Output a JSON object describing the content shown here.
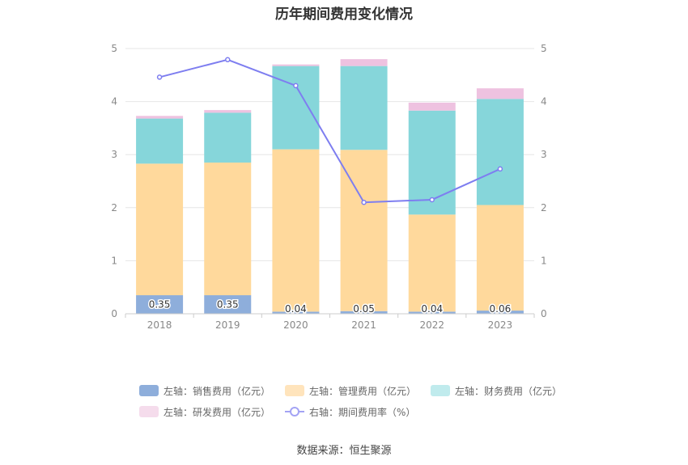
{
  "chart_data": {
    "type": "bar",
    "title": "历年期间费用变化情况",
    "categories": [
      "2018",
      "2019",
      "2020",
      "2021",
      "2022",
      "2023"
    ],
    "ylim_left": [
      0,
      5
    ],
    "ylim_right": [
      0,
      5
    ],
    "yticks": [
      "0",
      "1",
      "2",
      "3",
      "4",
      "5"
    ],
    "series": [
      {
        "name": "左轴：销售费用（亿元）",
        "axis": "left",
        "kind": "bar",
        "color": "#8eaedb",
        "values": [
          0.35,
          0.35,
          0.04,
          0.05,
          0.04,
          0.06
        ],
        "labels": [
          "0.35",
          "0.35",
          "0.04",
          "0.05",
          "0.04",
          "0.06"
        ]
      },
      {
        "name": "左轴：管理费用（亿元）",
        "axis": "left",
        "kind": "bar",
        "color": "#ffd99c",
        "values": [
          2.48,
          2.5,
          3.06,
          3.04,
          1.83,
          1.99
        ]
      },
      {
        "name": "左轴：财务费用（亿元）",
        "axis": "left",
        "kind": "bar",
        "color": "#86d6da",
        "values": [
          0.85,
          0.94,
          1.57,
          1.58,
          1.96,
          2.0
        ]
      },
      {
        "name": "左轴：研发费用（亿元）",
        "axis": "left",
        "kind": "bar",
        "color": "#eec2e0",
        "values": [
          0.05,
          0.05,
          0.03,
          0.13,
          0.15,
          0.2
        ]
      },
      {
        "name": "右轴：期间费用率（%）",
        "axis": "right",
        "kind": "line",
        "color": "#7e7ef0",
        "values": [
          4.46,
          4.79,
          4.3,
          2.1,
          2.15,
          2.73
        ]
      }
    ],
    "legend_position": "bottom"
  },
  "legend": [
    {
      "label": "左轴：销售费用（亿元）",
      "color": "#8eaedb",
      "kind": "bar"
    },
    {
      "label": "左轴：管理费用（亿元）",
      "color": "#ffe4bc",
      "kind": "bar"
    },
    {
      "label": "左轴：财务费用（亿元）",
      "color": "#c0ebed",
      "kind": "bar"
    },
    {
      "label": "左轴：研发费用（亿元）",
      "color": "#f5dcec",
      "kind": "bar"
    },
    {
      "label": "右轴：期间费用率（%）",
      "color": "#a3a3f4",
      "kind": "line"
    }
  ],
  "source": "数据来源：恒生聚源"
}
